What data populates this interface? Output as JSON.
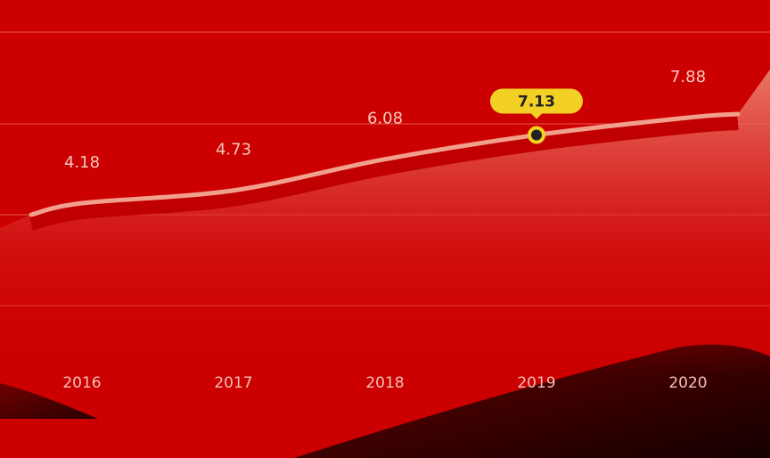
{
  "chart_data": {
    "type": "line",
    "categories": [
      "2016",
      "2017",
      "2018",
      "2019",
      "2020"
    ],
    "values": [
      4.18,
      4.73,
      6.08,
      7.13,
      7.88
    ],
    "color": "#f2a08e",
    "highlight_index": 3,
    "grid": true
  }
}
